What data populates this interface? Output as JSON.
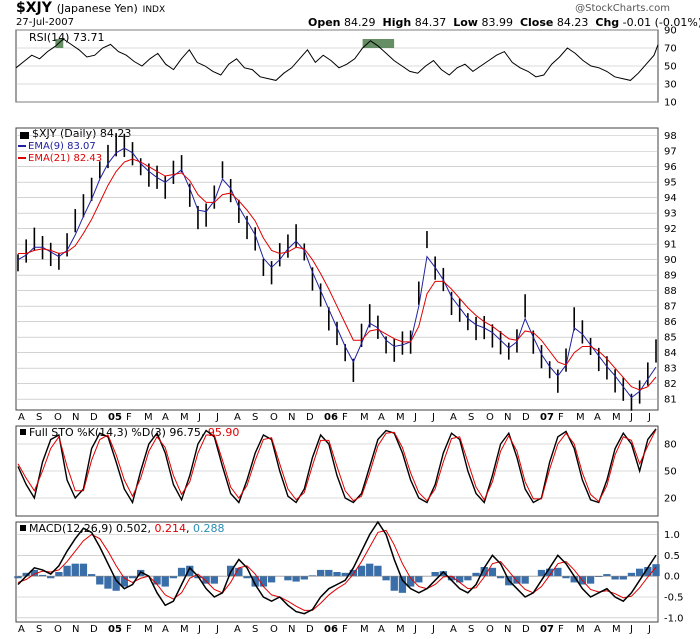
{
  "header": {
    "symbol": "$XJY",
    "name": "(Japanese Yen)",
    "exchange": "INDX",
    "date": "27-Jul-2007",
    "brand": "@StockCharts.com",
    "open_label": "Open",
    "open_value": "84.29",
    "high_label": "High",
    "high_value": "84.37",
    "low_label": "Low",
    "low_value": "83.99",
    "close_label": "Close",
    "close_value": "84.23",
    "chg_label": "Chg",
    "chg_value": "-0.01 (-0.01%)"
  },
  "colors": {
    "price": "#000000",
    "ema9": "#2020a0",
    "ema21": "#e00000",
    "rsi_fill": "#4a7a4a",
    "macd_hist": "#3a6ea8",
    "signal": "#e00000",
    "grid": "#b8b8b8",
    "panel_border": "#404040",
    "down_arrow": "#c00000"
  },
  "chart_data": [
    {
      "panel": "rsi",
      "type": "line",
      "label": "RSI(14) 73.71",
      "ylim": [
        10,
        90
      ],
      "ticks": [
        "90",
        "70",
        "50",
        "30",
        "10"
      ],
      "tick_values": [
        90,
        70,
        50,
        30,
        10
      ],
      "x": [
        0,
        8,
        16,
        24,
        32,
        40,
        48,
        56,
        64,
        72,
        80,
        88,
        96,
        104,
        112,
        120,
        128,
        136,
        144,
        152,
        160,
        168,
        176,
        184,
        192,
        200,
        208,
        216,
        224,
        232,
        240,
        248,
        256,
        264,
        272,
        280,
        288,
        296,
        304,
        312,
        320,
        328,
        336,
        344,
        352,
        360,
        368,
        376,
        384,
        392,
        400,
        408,
        416,
        424,
        432,
        440,
        448,
        456,
        464,
        472,
        480,
        488,
        496,
        504,
        512,
        520,
        528,
        536,
        544,
        552,
        560,
        568,
        576,
        584,
        592,
        600,
        608,
        616,
        624,
        632,
        640,
        648,
        652
      ],
      "values": [
        48,
        55,
        62,
        58,
        66,
        72,
        80,
        74,
        68,
        60,
        62,
        70,
        74,
        66,
        62,
        55,
        50,
        58,
        64,
        52,
        46,
        58,
        68,
        54,
        50,
        44,
        40,
        52,
        58,
        48,
        46,
        38,
        36,
        34,
        42,
        48,
        58,
        68,
        54,
        62,
        56,
        48,
        52,
        58,
        70,
        78,
        72,
        64,
        56,
        50,
        44,
        42,
        50,
        56,
        46,
        40,
        48,
        52,
        44,
        50,
        56,
        62,
        66,
        54,
        48,
        44,
        38,
        40,
        52,
        60,
        70,
        64,
        56,
        50,
        48,
        44,
        38,
        36,
        34,
        42,
        52,
        62,
        73.71
      ],
      "overbought_fill_ranges": [
        [
          40,
          48
        ],
        [
          352,
          384
        ]
      ]
    },
    {
      "panel": "price",
      "type": "line",
      "title": "$XJY (Daily) 84.23",
      "ylim": [
        80.3,
        98.5
      ],
      "ticks": [
        "98",
        "97",
        "96",
        "95",
        "94",
        "93",
        "92",
        "91",
        "90",
        "89",
        "88",
        "87",
        "86",
        "85",
        "84",
        "83",
        "82",
        "81"
      ],
      "tick_values": [
        98,
        97,
        96,
        95,
        94,
        93,
        92,
        91,
        90,
        89,
        88,
        87,
        86,
        85,
        84,
        83,
        82,
        81
      ],
      "x_labels": [
        "A",
        "S",
        "O",
        "N",
        "D",
        "05",
        "F",
        "M",
        "A",
        "M",
        "J",
        "J",
        "A",
        "S",
        "O",
        "N",
        "D",
        "06",
        "F",
        "M",
        "A",
        "M",
        "J",
        "J",
        "A",
        "S",
        "O",
        "N",
        "D",
        "07",
        "F",
        "M",
        "A",
        "M",
        "J",
        "J"
      ],
      "series": [
        {
          "name": "$XJY (Daily) 84.23",
          "role": "price",
          "values": [
            89.8,
            90.6,
            91.2,
            90.9,
            90.3,
            89.9,
            91.0,
            92.4,
            93.6,
            94.5,
            95.8,
            96.7,
            97.3,
            97.5,
            96.8,
            96.0,
            95.5,
            95.2,
            94.8,
            95.6,
            96.2,
            94.2,
            92.6,
            93.0,
            94.0,
            95.8,
            94.5,
            93.0,
            92.2,
            91.3,
            89.5,
            89.2,
            90.2,
            91.0,
            91.5,
            90.5,
            88.8,
            87.6,
            86.3,
            85.2,
            84.0,
            82.9,
            85.0,
            86.5,
            85.6,
            84.5,
            84.2,
            84.5,
            84.8,
            87.8,
            91.3,
            89.5,
            88.6,
            87.3,
            86.7,
            86.0,
            85.6,
            85.5,
            85.2,
            84.6,
            84.1,
            84.8,
            86.9,
            84.8,
            83.7,
            82.9,
            82.2,
            83.4,
            86.3,
            85.3,
            84.4,
            83.6,
            82.9,
            82.3,
            81.6,
            80.8,
            81.5,
            82.5,
            84.23
          ]
        },
        {
          "name": "EMA(9) 83.07",
          "role": "ema9",
          "values": [
            90.0,
            90.3,
            90.8,
            90.8,
            90.5,
            90.2,
            90.6,
            91.6,
            92.8,
            93.9,
            95.2,
            96.2,
            96.9,
            97.2,
            96.9,
            96.2,
            95.7,
            95.3,
            95.0,
            95.4,
            95.8,
            94.6,
            93.2,
            93.1,
            93.8,
            95.2,
            94.6,
            93.4,
            92.5,
            91.6,
            90.1,
            89.5,
            90.0,
            90.7,
            91.2,
            90.6,
            89.2,
            88.0,
            86.8,
            85.6,
            84.4,
            83.4,
            84.6,
            85.9,
            85.6,
            84.8,
            84.4,
            84.5,
            84.7,
            87.0,
            90.2,
            89.5,
            88.7,
            87.6,
            86.9,
            86.2,
            85.8,
            85.6,
            85.3,
            84.8,
            84.3,
            84.7,
            86.2,
            85.0,
            83.9,
            83.1,
            82.5,
            83.2,
            85.6,
            85.2,
            84.5,
            83.8,
            83.1,
            82.5,
            81.8,
            81.1,
            81.5,
            82.3,
            83.07
          ]
        },
        {
          "name": "EMA(21) 82.43",
          "role": "ema21",
          "values": [
            90.4,
            90.4,
            90.6,
            90.7,
            90.6,
            90.4,
            90.5,
            90.9,
            91.7,
            92.6,
            93.7,
            94.8,
            95.7,
            96.3,
            96.5,
            96.3,
            96.0,
            95.7,
            95.4,
            95.5,
            95.6,
            95.1,
            94.2,
            93.7,
            93.7,
            94.2,
            94.3,
            93.8,
            93.2,
            92.5,
            91.4,
            90.6,
            90.4,
            90.5,
            90.8,
            90.7,
            90.0,
            89.1,
            88.1,
            87.0,
            85.9,
            84.8,
            84.8,
            85.4,
            85.5,
            85.2,
            84.9,
            84.7,
            84.7,
            85.7,
            87.8,
            88.6,
            88.6,
            88.1,
            87.5,
            86.9,
            86.4,
            86.0,
            85.7,
            85.3,
            84.9,
            84.8,
            85.4,
            85.3,
            84.8,
            84.1,
            83.4,
            83.2,
            84.0,
            84.4,
            84.4,
            84.1,
            83.6,
            83.0,
            82.4,
            81.8,
            81.6,
            81.8,
            82.43
          ]
        }
      ]
    },
    {
      "panel": "stochastic",
      "type": "line",
      "label": "Full STO %K(14,3) %D(3) 96.75, 95.90",
      "title_prefix": "Full STO %K(14,3) %D(3) ",
      "k_value": "96.75",
      "d_value": "95.90",
      "ylim": [
        0,
        100
      ],
      "ticks": [
        "80",
        "50",
        "20"
      ],
      "tick_values": [
        80,
        50,
        20
      ],
      "series": [
        {
          "name": "%K(14,3)",
          "role": "k",
          "values": [
            55,
            35,
            20,
            60,
            85,
            90,
            40,
            20,
            30,
            75,
            92,
            88,
            60,
            30,
            15,
            50,
            80,
            92,
            70,
            35,
            18,
            45,
            80,
            95,
            88,
            55,
            25,
            15,
            40,
            70,
            90,
            85,
            50,
            22,
            15,
            30,
            65,
            90,
            80,
            45,
            20,
            15,
            25,
            55,
            85,
            95,
            92,
            70,
            40,
            20,
            15,
            35,
            70,
            92,
            85,
            50,
            25,
            15,
            45,
            80,
            92,
            65,
            30,
            15,
            20,
            60,
            88,
            94,
            75,
            40,
            18,
            15,
            40,
            75,
            92,
            80,
            50,
            85,
            96.75
          ]
        },
        {
          "name": "%D(3)",
          "role": "d",
          "values": [
            58,
            42,
            28,
            50,
            75,
            88,
            55,
            28,
            28,
            62,
            85,
            90,
            68,
            40,
            22,
            42,
            72,
            88,
            76,
            45,
            24,
            38,
            70,
            90,
            90,
            62,
            32,
            20,
            34,
            62,
            85,
            87,
            58,
            30,
            18,
            26,
            56,
            84,
            84,
            55,
            28,
            17,
            22,
            48,
            78,
            92,
            93,
            76,
            48,
            26,
            17,
            30,
            60,
            86,
            88,
            60,
            32,
            18,
            38,
            72,
            89,
            72,
            38,
            19,
            19,
            52,
            80,
            92,
            80,
            48,
            24,
            16,
            34,
            68,
            88,
            84,
            58,
            78,
            95.9
          ]
        }
      ]
    },
    {
      "panel": "macd",
      "type": "line",
      "label": "MACD(12,26,9) 0.502, 0.214, 0.288",
      "title_prefix": "MACD(12,26,9) ",
      "macd_value": "0.502",
      "signal_value": "0.214",
      "hist_value": "0.288",
      "ylim": [
        -1.1,
        1.3
      ],
      "ticks": [
        "1.0",
        "0.5",
        "0.0",
        "-0.5",
        "-1.0"
      ],
      "tick_values": [
        1.0,
        0.5,
        0.0,
        -0.5,
        -1.0
      ],
      "x_labels": [
        "A",
        "S",
        "O",
        "N",
        "D",
        "05",
        "F",
        "M",
        "A",
        "M",
        "J",
        "J",
        "A",
        "S",
        "O",
        "N",
        "D",
        "06",
        "F",
        "M",
        "A",
        "M",
        "J",
        "J",
        "A",
        "S",
        "O",
        "N",
        "D",
        "07",
        "F",
        "M",
        "A",
        "M",
        "J",
        "J"
      ],
      "series": [
        {
          "name": "MACD(12,26,9)",
          "role": "macd",
          "values": [
            -0.2,
            0.0,
            0.2,
            0.15,
            0.05,
            0.25,
            0.6,
            0.9,
            1.15,
            1.05,
            0.7,
            0.3,
            -0.1,
            -0.3,
            -0.2,
            0.1,
            0.0,
            -0.4,
            -0.7,
            -0.6,
            -0.2,
            0.2,
            0.0,
            -0.3,
            -0.5,
            -0.4,
            0.1,
            0.4,
            0.2,
            -0.2,
            -0.5,
            -0.6,
            -0.5,
            -0.7,
            -0.85,
            -0.9,
            -0.8,
            -0.5,
            -0.3,
            -0.2,
            -0.1,
            0.2,
            0.6,
            1.0,
            1.3,
            1.0,
            0.4,
            -0.1,
            -0.3,
            -0.4,
            -0.3,
            -0.1,
            0.1,
            -0.1,
            -0.3,
            -0.4,
            -0.2,
            0.2,
            0.5,
            0.3,
            -0.1,
            -0.3,
            -0.5,
            -0.4,
            -0.1,
            0.2,
            0.5,
            0.3,
            0.0,
            -0.3,
            -0.5,
            -0.4,
            -0.3,
            -0.5,
            -0.6,
            -0.4,
            -0.1,
            0.2,
            0.502
          ]
        },
        {
          "name": "Signal",
          "role": "signal",
          "values": [
            -0.15,
            -0.08,
            0.05,
            0.12,
            0.1,
            0.15,
            0.35,
            0.6,
            0.85,
            1.0,
            0.9,
            0.6,
            0.25,
            -0.05,
            -0.15,
            -0.05,
            0.0,
            -0.2,
            -0.45,
            -0.55,
            -0.4,
            -0.05,
            0.05,
            -0.12,
            -0.32,
            -0.4,
            -0.15,
            0.2,
            0.25,
            0.05,
            -0.25,
            -0.45,
            -0.5,
            -0.6,
            -0.72,
            -0.82,
            -0.82,
            -0.65,
            -0.45,
            -0.3,
            -0.18,
            0.05,
            0.35,
            0.7,
            1.05,
            1.1,
            0.75,
            0.3,
            -0.05,
            -0.25,
            -0.3,
            -0.2,
            -0.02,
            0.0,
            -0.15,
            -0.3,
            -0.28,
            -0.02,
            0.3,
            0.35,
            0.12,
            -0.12,
            -0.32,
            -0.4,
            -0.25,
            0.02,
            0.3,
            0.35,
            0.15,
            -0.1,
            -0.32,
            -0.38,
            -0.35,
            -0.42,
            -0.52,
            -0.48,
            -0.28,
            -0.02,
            0.214
          ]
        }
      ]
    }
  ]
}
